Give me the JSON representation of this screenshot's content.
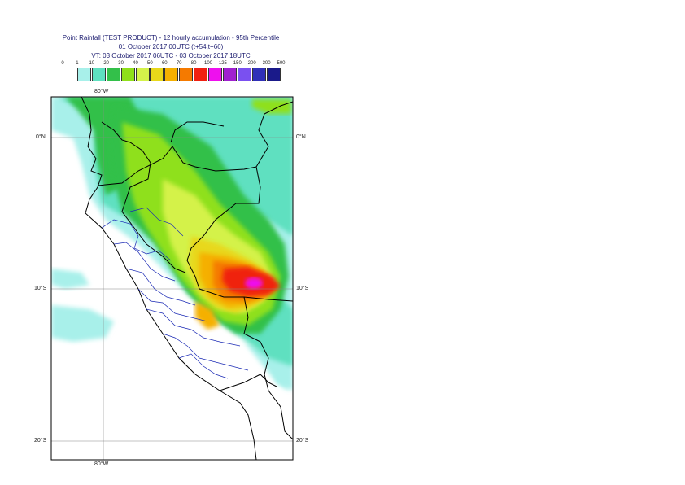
{
  "title": {
    "line1": "Point Rainfall (TEST PRODUCT) - 12 hourly accumulation - 95th Percentile",
    "line2": "01 October 2017 00UTC (t+54,t+66)",
    "line3": "VT: 03 October 2017 06UTC - 03 October 2017 18UTC"
  },
  "legend": {
    "ticks": [
      "0",
      "1",
      "10",
      "20",
      "30",
      "40",
      "50",
      "60",
      "70",
      "80",
      "100",
      "125",
      "150",
      "200",
      "300",
      "500"
    ],
    "colors": [
      "#ffffff",
      "#a8f0ea",
      "#5ee0c0",
      "#33c04a",
      "#8fe01a",
      "#d4f24a",
      "#e8d81a",
      "#f5b000",
      "#f57a00",
      "#f02010",
      "#ee10ee",
      "#a020d0",
      "#7a50f0",
      "#3030b8",
      "#1a1a8a"
    ]
  },
  "axes": {
    "lon_top": "80°W",
    "lon_bottom": "80°W",
    "lat_0_left": "0°N",
    "lat_0_right": "0°N",
    "lat_10_left": "10°S",
    "lat_10_right": "10°S",
    "lat_20_left": "20°S",
    "lat_20_right": "20°S"
  }
}
